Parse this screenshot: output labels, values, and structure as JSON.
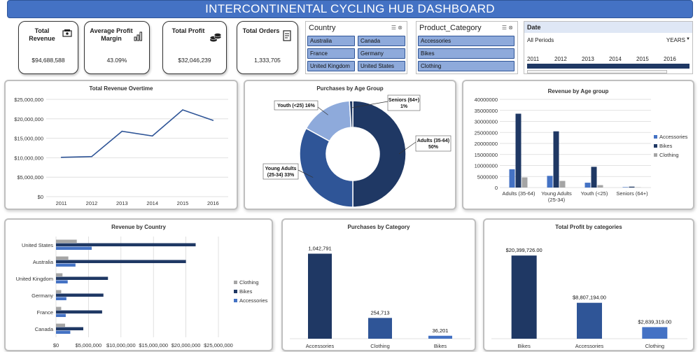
{
  "header": {
    "title": "INTERCONTINENTAL CYCLING HUB DASHBOARD"
  },
  "kpis": [
    {
      "label": "Total Revenue",
      "value": "$94,688,588",
      "icon": "money-icon"
    },
    {
      "label": "Average Profit Margin",
      "value": "43.09%",
      "icon": "bar-chart-icon"
    },
    {
      "label": "Total Profit",
      "value": "$32,046,239",
      "icon": "coins-icon"
    },
    {
      "label": "Total Orders",
      "value": "1,333,705",
      "icon": "receipt-icon"
    }
  ],
  "slicers": {
    "country": {
      "title": "Country",
      "items": [
        "Australia",
        "Canada",
        "France",
        "Germany",
        "United Kingdom",
        "United States"
      ]
    },
    "category": {
      "title": "Product_Category",
      "items": [
        "Accessories",
        "Bikes",
        "Clothing"
      ]
    },
    "date": {
      "title": "Date",
      "periods": "All Periods",
      "level": "YEARS",
      "years": [
        "2011",
        "2012",
        "2013",
        "2014",
        "2015",
        "2016"
      ]
    }
  },
  "colors": {
    "accessories": "#4472c4",
    "bikes": "#1f3864",
    "clothing": "#a5a5a5",
    "line": "#2f5597",
    "mid": "#2f5597",
    "light": "#8eaadb"
  },
  "chart_data": [
    {
      "id": "revenue-overtime",
      "type": "line",
      "title": "Total Revenue Overtime",
      "x": [
        "2011",
        "2012",
        "2013",
        "2014",
        "2015",
        "2016"
      ],
      "series": [
        {
          "values": [
            10100000,
            10300000,
            16800000,
            15600000,
            22300000,
            19600000
          ]
        }
      ],
      "ylim": [
        0,
        25000000
      ],
      "yticks": [
        "$0",
        "$5,000,000",
        "$10,000,000",
        "$15,000,000",
        "$20,000,000",
        "$25,000,000"
      ],
      "grid": true
    },
    {
      "id": "purchases-age",
      "type": "pie",
      "title": "Purchases by Age Group",
      "categories": [
        "Adults (35-64)",
        "Young Adults (25-34)",
        "Youth (<25)",
        "Seniors (64+)"
      ],
      "values": [
        50,
        33,
        16,
        1
      ],
      "labels": [
        "Adults (35-64) 50%",
        "Young Adults (25-34) 33%",
        "Youth (<25) 16%",
        "Seniors (64+) 1%"
      ]
    },
    {
      "id": "revenue-age",
      "type": "bar",
      "title": "Revenue by Age group",
      "categories": [
        "Adults (35-64)",
        "Young Adults (25-34)",
        "Youth (<25)",
        "Seniors (64+)"
      ],
      "series": [
        {
          "name": "Accessories",
          "values": [
            8300000,
            5300000,
            2200000,
            200000
          ]
        },
        {
          "name": "Bikes",
          "values": [
            33500000,
            25500000,
            9400000,
            400000
          ]
        },
        {
          "name": "Clothing",
          "values": [
            4600000,
            3000000,
            1100000,
            100000
          ]
        }
      ],
      "ylim": [
        0,
        40000000
      ],
      "yticks": [
        "0",
        "5000000",
        "10000000",
        "15000000",
        "20000000",
        "25000000",
        "30000000",
        "35000000",
        "40000000"
      ],
      "legend": "right",
      "grid": true
    },
    {
      "id": "revenue-country",
      "type": "bar",
      "orientation": "horizontal",
      "title": "Revenue by Country",
      "categories": [
        "United States",
        "Australia",
        "United Kingdom",
        "Germany",
        "France",
        "Canada"
      ],
      "series": [
        {
          "name": "Clothing",
          "values": [
            3200000,
            1900000,
            1000000,
            800000,
            800000,
            1400000
          ]
        },
        {
          "name": "Bikes",
          "values": [
            21500000,
            20000000,
            8000000,
            7300000,
            7100000,
            4200000
          ]
        },
        {
          "name": "Accessories",
          "values": [
            5500000,
            3000000,
            1800000,
            1600000,
            1500000,
            2200000
          ]
        }
      ],
      "xlim": [
        0,
        25000000
      ],
      "xticks": [
        "$0",
        "$5,000,000",
        "$10,000,000",
        "$15,000,000",
        "$20,000,000",
        "$25,000,000"
      ],
      "legend": "right",
      "grid": true
    },
    {
      "id": "purchases-category",
      "type": "bar",
      "title": "Purchases by Category",
      "categories": [
        "Accessories",
        "Clothing",
        "Bikes"
      ],
      "values": [
        1042791,
        254713,
        36201
      ],
      "labels": [
        "1,042,791",
        "254,713",
        "36,201"
      ],
      "ylim": [
        0,
        1150000
      ]
    },
    {
      "id": "profit-category",
      "type": "bar",
      "title": "Total Profit by categories",
      "categories": [
        "Bikes",
        "Accessories",
        "Clothing"
      ],
      "values": [
        20399726,
        8807194,
        2839319
      ],
      "labels": [
        "$20,399,726.00",
        "$8,807,194.00",
        "$2,839,319.00"
      ],
      "ylim": [
        0,
        23000000
      ]
    }
  ]
}
